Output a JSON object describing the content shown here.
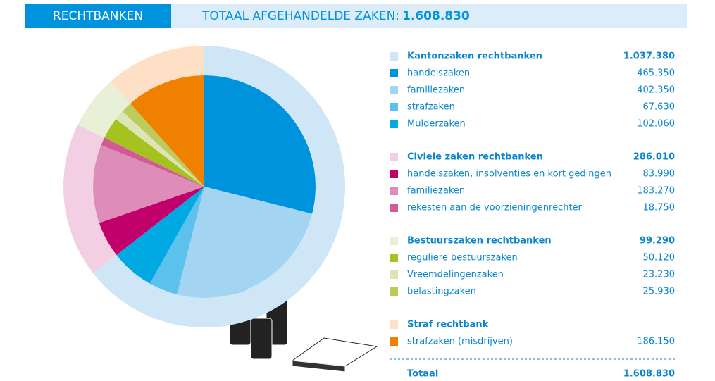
{
  "chart_data": {
    "type": "pie",
    "header_label": "RECHTBANKEN",
    "title": "TOTAAL AFGEHANDELDE ZAKEN:",
    "total_name": "Totaal",
    "total": 1608830,
    "total_label": "1.608.830",
    "groups": [
      {
        "name": "Kantonzaken rechtbanken",
        "color": "#cfe6f7",
        "value": 1037380,
        "value_label": "1.037.380",
        "series": [
          {
            "name": "handelszaken",
            "color": "#0093dd",
            "value": 465350,
            "value_label": "465.350"
          },
          {
            "name": "familiezaken",
            "color": "#a3d5f3",
            "value": 402350,
            "value_label": "402.350"
          },
          {
            "name": "strafzaken",
            "color": "#5cc1ec",
            "value": 67630,
            "value_label": "67.630"
          },
          {
            "name": "Mulderzaken",
            "color": "#00a9e2",
            "value": 102060,
            "value_label": "102.060"
          }
        ]
      },
      {
        "name": "Civiele zaken rechtbanken",
        "color": "#f2cfe2",
        "value": 286010,
        "value_label": "286.010",
        "series": [
          {
            "name": "handelszaken, insolventies en kort gedingen",
            "color": "#c2006b",
            "value": 83990,
            "value_label": "83.990"
          },
          {
            "name": "familiezaken",
            "color": "#dd8db7",
            "value": 183270,
            "value_label": "183.270"
          },
          {
            "name": "rekesten aan de voorzieningenrechter",
            "color": "#d15b95",
            "value": 18750,
            "value_label": "18.750"
          }
        ]
      },
      {
        "name": "Bestuurszaken rechtbanken",
        "color": "#e9f0d8",
        "value": 99290,
        "value_label": "99.290",
        "series": [
          {
            "name": "reguliere bestuurszaken",
            "color": "#a5c21f",
            "value": 50120,
            "value_label": "50.120"
          },
          {
            "name": "Vreemdelingenzaken",
            "color": "#dbe5b5",
            "value": 23230,
            "value_label": "23.230"
          },
          {
            "name": "belastingzaken",
            "color": "#bccb5c",
            "value": 25930,
            "value_label": "25.930"
          }
        ]
      },
      {
        "name": "Straf rechtbank",
        "color": "#fde0c5",
        "series": [
          {
            "name": "strafzaken (misdrijven)",
            "color": "#f08000",
            "value": 186150,
            "value_label": "186.150"
          }
        ]
      }
    ]
  }
}
